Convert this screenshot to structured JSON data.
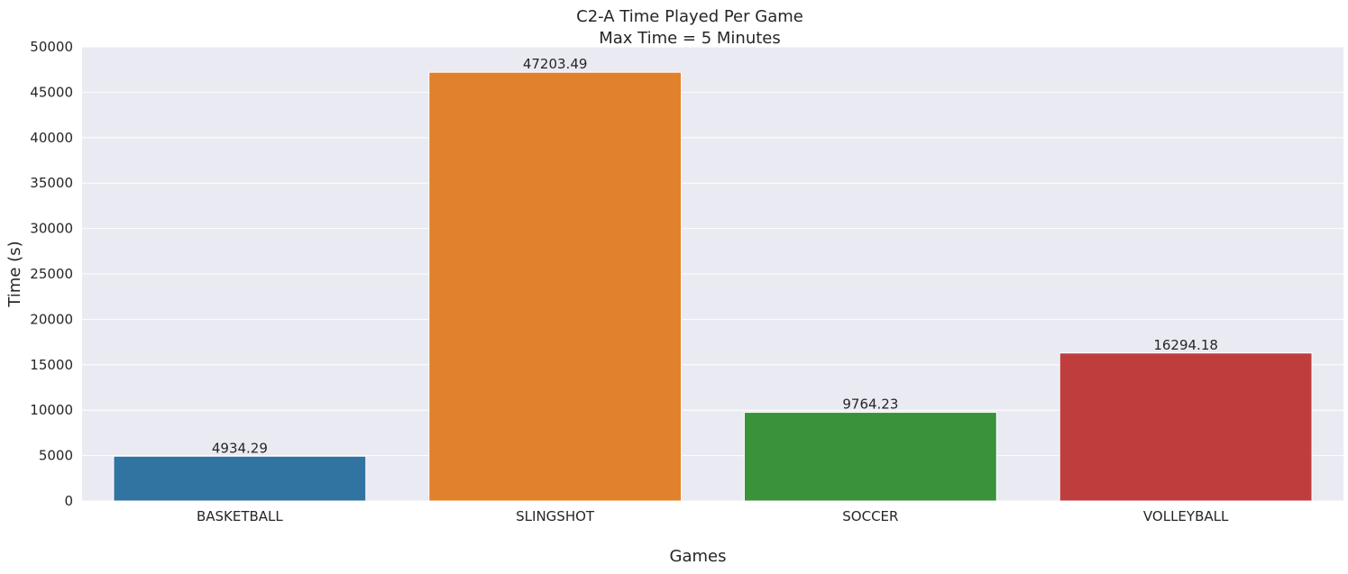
{
  "chart_data": {
    "type": "bar",
    "title": "C2-A Time Played Per Game",
    "subtitle": "Max Time = 5 Minutes",
    "xlabel": "Games",
    "ylabel": "Time (s)",
    "categories": [
      "BASKETBALL",
      "SLINGSHOT",
      "SOCCER",
      "VOLLEYBALL"
    ],
    "values": [
      4934.29,
      47203.49,
      9764.23,
      16294.18
    ],
    "value_labels": [
      "4934.29",
      "47203.49",
      "9764.23",
      "16294.18"
    ],
    "colors": [
      "#3274a1",
      "#e1812c",
      "#3a923a",
      "#c03d3e"
    ],
    "ylim": [
      0,
      50000
    ],
    "yticks": [
      0,
      5000,
      10000,
      15000,
      20000,
      25000,
      30000,
      35000,
      40000,
      45000,
      50000
    ],
    "grid": true,
    "background": "#eaeaf2"
  }
}
